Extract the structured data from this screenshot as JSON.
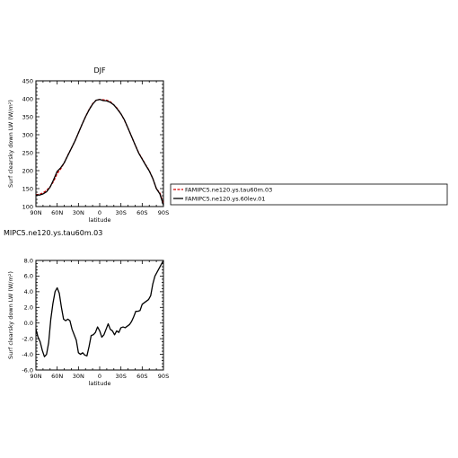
{
  "chart_data": [
    {
      "type": "line",
      "title": "DJF",
      "xlabel": "latitude",
      "ylabel": "Surf clearsky down LW (W/m²)",
      "x_tick_labels": [
        "90N",
        "60N",
        "30N",
        "0",
        "30S",
        "60S",
        "90S"
      ],
      "xlim": [
        90,
        -90
      ],
      "ylim": [
        100,
        450
      ],
      "y_ticks": [
        100,
        150,
        200,
        250,
        300,
        350,
        400,
        450
      ],
      "grid": false,
      "legend": "right",
      "series": [
        {
          "name": "FAMIPC5.ne120.ys.tau60m.03",
          "color": "#d40000",
          "dash": "dashed",
          "x": [
            90,
            85,
            80,
            75,
            70,
            65,
            60,
            55,
            50,
            45,
            40,
            35,
            30,
            25,
            20,
            15,
            10,
            5,
            0,
            -5,
            -10,
            -15,
            -20,
            -25,
            -30,
            -35,
            -40,
            -45,
            -50,
            -55,
            -60,
            -65,
            -70,
            -75,
            -80,
            -85,
            -90
          ],
          "y": [
            133,
            134,
            138,
            145,
            155,
            170,
            192,
            205,
            222,
            243,
            262,
            282,
            305,
            328,
            350,
            370,
            386,
            396,
            398,
            397,
            396,
            392,
            383,
            373,
            358,
            340,
            318,
            295,
            272,
            250,
            233,
            216,
            200,
            178,
            150,
            138,
            108
          ]
        },
        {
          "name": "FAMIPC5.ne120.ys.60lev.01",
          "color": "#000000",
          "dash": "solid",
          "x": [
            90,
            85,
            80,
            75,
            70,
            65,
            60,
            55,
            50,
            45,
            40,
            35,
            30,
            25,
            20,
            15,
            10,
            5,
            0,
            -5,
            -10,
            -15,
            -20,
            -25,
            -30,
            -35,
            -40,
            -45,
            -50,
            -55,
            -60,
            -65,
            -70,
            -75,
            -80,
            -85,
            -90
          ],
          "y": [
            132,
            132,
            135,
            141,
            154,
            175,
            198,
            208,
            222,
            242,
            262,
            282,
            305,
            328,
            350,
            369,
            385,
            396,
            398,
            395,
            394,
            390,
            383,
            371,
            358,
            341,
            318,
            295,
            272,
            249,
            232,
            215,
            199,
            178,
            150,
            135,
            104
          ]
        }
      ]
    },
    {
      "type": "line",
      "title": "MIPC5.ne120.ys.tau60m.03",
      "xlabel": "latitude",
      "ylabel": "Surf clearsky down LW (W/m²)",
      "x_tick_labels": [
        "90N",
        "60N",
        "30N",
        "0",
        "30S",
        "60S",
        "90S"
      ],
      "xlim": [
        90,
        -90
      ],
      "ylim": [
        -6,
        8
      ],
      "y_ticks": [
        -6.0,
        -4.0,
        -2.0,
        0.0,
        2.0,
        4.0,
        6.0,
        8.0
      ],
      "y_tick_labels": [
        "-6.0",
        "-4.0",
        "-2.0",
        "0.0",
        "2.0",
        "4.0",
        "6.0",
        "8.0"
      ],
      "grid": false,
      "series": [
        {
          "color": "#000000",
          "dash": "solid",
          "x": [
            90,
            87,
            84,
            81,
            78,
            75,
            72,
            69,
            66,
            63,
            60,
            57,
            54,
            51,
            48,
            45,
            42,
            39,
            36,
            33,
            30,
            27,
            24,
            21,
            18,
            15,
            12,
            9,
            6,
            3,
            0,
            -3,
            -6,
            -9,
            -12,
            -15,
            -18,
            -21,
            -24,
            -27,
            -30,
            -33,
            -36,
            -39,
            -42,
            -45,
            -48,
            -51,
            -54,
            -57,
            -60,
            -63,
            -66,
            -69,
            -72,
            -75,
            -78,
            -81,
            -84,
            -87,
            -90
          ],
          "y": [
            -0.8,
            -1.8,
            -2.4,
            -3.5,
            -4.3,
            -4.0,
            -2.5,
            0.5,
            2.5,
            4.0,
            4.5,
            3.8,
            2.0,
            0.5,
            0.3,
            0.5,
            0.3,
            -0.8,
            -1.5,
            -2.2,
            -3.8,
            -4.0,
            -3.8,
            -4.1,
            -4.2,
            -3.0,
            -1.6,
            -1.5,
            -1.2,
            -0.5,
            -1.0,
            -1.8,
            -1.5,
            -0.8,
            -0.1,
            -0.8,
            -1.0,
            -1.5,
            -1.0,
            -1.2,
            -0.6,
            -0.5,
            -0.6,
            -0.4,
            -0.2,
            0.2,
            0.8,
            1.5,
            1.5,
            1.6,
            2.4,
            2.6,
            2.8,
            3.0,
            3.5,
            5.0,
            6.0,
            6.5,
            7.0,
            7.5,
            8.0
          ]
        }
      ]
    }
  ]
}
